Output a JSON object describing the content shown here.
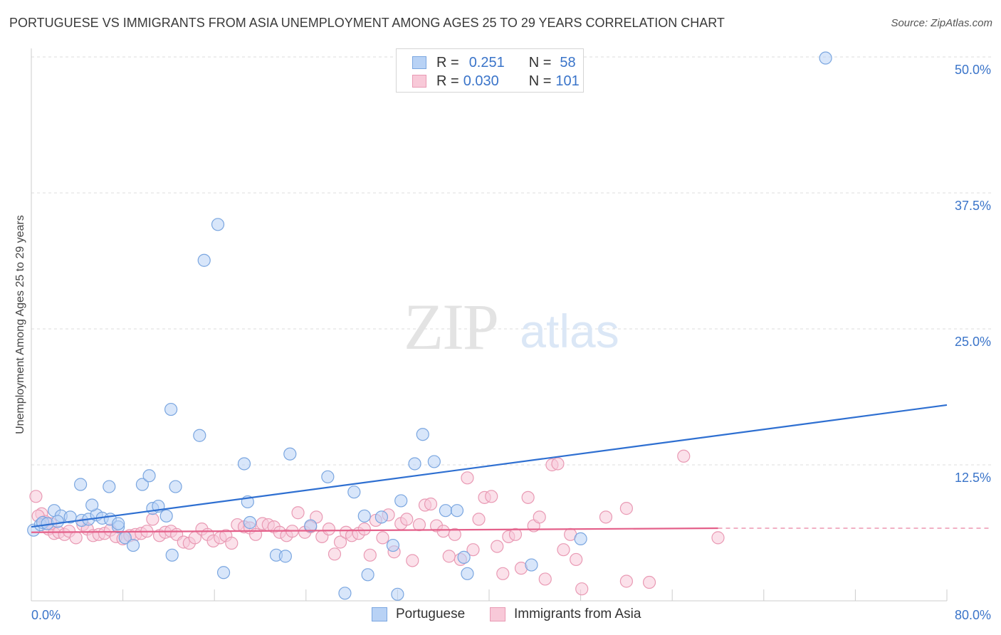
{
  "header": {
    "title": "PORTUGUESE VS IMMIGRANTS FROM ASIA UNEMPLOYMENT AMONG AGES 25 TO 29 YEARS CORRELATION CHART",
    "source": "Source: ZipAtlas.com"
  },
  "watermark": {
    "zip": "ZIP",
    "atlas": "atlas"
  },
  "legend": {
    "r_label": "R =",
    "n_label": "N =",
    "series": [
      {
        "r": "0.251",
        "n": "58"
      },
      {
        "r": "0.030",
        "n": "101"
      }
    ]
  },
  "bottom_legend": [
    "Portuguese",
    "Immigrants from Asia"
  ],
  "colors": {
    "portuguese_fill": "#b8d2f5",
    "portuguese_stroke": "#7aa6e0",
    "portuguese_line": "#2e6fd1",
    "asia_fill": "#f8c9d8",
    "asia_stroke": "#e99ab4",
    "asia_line": "#e4608a",
    "axis_text": "#3a74c9",
    "grid": "#dddddd"
  },
  "chart_data": {
    "type": "scatter",
    "title": "PORTUGUESE VS IMMIGRANTS FROM ASIA UNEMPLOYMENT AMONG AGES 25 TO 29 YEARS CORRELATION CHART",
    "ylabel": "Unemployment Among Ages 25 to 29 years",
    "xlabel": "",
    "xlim": [
      0,
      80
    ],
    "ylim": [
      0,
      50
    ],
    "x_tick_labels": [
      "0.0%",
      "80.0%"
    ],
    "y_ticks": [
      12.5,
      25.0,
      37.5,
      50.0
    ],
    "y_tick_labels": [
      "12.5%",
      "25.0%",
      "37.5%",
      "50.0%"
    ],
    "grid": true,
    "legend_position": "top-center",
    "series": [
      {
        "name": "Portuguese",
        "r": 0.251,
        "n": 58,
        "trend": {
          "x": [
            0,
            80
          ],
          "y": [
            6.8,
            18.0
          ],
          "dashed_from": null
        },
        "points": [
          [
            0.2,
            6.5
          ],
          [
            0.8,
            7.0
          ],
          [
            1.0,
            7.2
          ],
          [
            1.4,
            7.1
          ],
          [
            2.0,
            8.3
          ],
          [
            2.6,
            7.8
          ],
          [
            3.4,
            7.7
          ],
          [
            4.4,
            7.4
          ],
          [
            5.0,
            7.5
          ],
          [
            5.7,
            7.9
          ],
          [
            6.2,
            7.6
          ],
          [
            6.9,
            7.5
          ],
          [
            7.6,
            6.8
          ],
          [
            8.2,
            5.8
          ],
          [
            8.9,
            5.1
          ],
          [
            10.6,
            8.5
          ],
          [
            11.1,
            8.7
          ],
          [
            11.8,
            7.8
          ],
          [
            12.3,
            4.2
          ],
          [
            12.6,
            10.5
          ],
          [
            4.3,
            10.7
          ],
          [
            5.3,
            8.8
          ],
          [
            6.8,
            10.5
          ],
          [
            9.7,
            10.7
          ],
          [
            10.3,
            11.5
          ],
          [
            12.2,
            17.6
          ],
          [
            14.7,
            15.2
          ],
          [
            15.1,
            31.3
          ],
          [
            16.3,
            34.6
          ],
          [
            16.8,
            2.6
          ],
          [
            18.6,
            12.6
          ],
          [
            18.9,
            9.1
          ],
          [
            19.1,
            7.2
          ],
          [
            21.4,
            4.2
          ],
          [
            22.2,
            4.1
          ],
          [
            22.6,
            13.5
          ],
          [
            24.4,
            6.9
          ],
          [
            25.9,
            11.4
          ],
          [
            27.4,
            0.7
          ],
          [
            28.2,
            10.0
          ],
          [
            29.1,
            7.8
          ],
          [
            29.4,
            2.4
          ],
          [
            30.6,
            7.7
          ],
          [
            31.6,
            5.1
          ],
          [
            32.0,
            0.6
          ],
          [
            32.3,
            9.2
          ],
          [
            33.5,
            12.6
          ],
          [
            34.2,
            15.3
          ],
          [
            35.2,
            12.8
          ],
          [
            36.2,
            8.3
          ],
          [
            37.2,
            8.3
          ],
          [
            37.8,
            4.0
          ],
          [
            38.1,
            2.5
          ],
          [
            43.7,
            3.3
          ],
          [
            48.0,
            5.7
          ],
          [
            69.4,
            49.9
          ],
          [
            7.6,
            7.1
          ],
          [
            2.3,
            7.3
          ]
        ]
      },
      {
        "name": "Immigrants from Asia",
        "r": 0.03,
        "n": 101,
        "trend": {
          "x": [
            0,
            80
          ],
          "y": [
            6.3,
            6.8
          ],
          "dashed_from": 60
        },
        "points": [
          [
            0.4,
            9.6
          ],
          [
            0.9,
            8.0
          ],
          [
            1.2,
            7.3
          ],
          [
            1.5,
            6.6
          ],
          [
            2.0,
            6.2
          ],
          [
            2.4,
            6.3
          ],
          [
            2.9,
            6.1
          ],
          [
            3.3,
            6.4
          ],
          [
            3.9,
            5.8
          ],
          [
            4.5,
            7.0
          ],
          [
            4.9,
            6.6
          ],
          [
            5.4,
            6.0
          ],
          [
            5.9,
            6.1
          ],
          [
            6.4,
            6.2
          ],
          [
            6.9,
            6.5
          ],
          [
            7.4,
            5.9
          ],
          [
            8.0,
            5.7
          ],
          [
            8.6,
            6.0
          ],
          [
            9.1,
            6.1
          ],
          [
            9.6,
            6.2
          ],
          [
            10.1,
            6.4
          ],
          [
            10.6,
            7.5
          ],
          [
            11.2,
            6.0
          ],
          [
            11.7,
            6.3
          ],
          [
            12.2,
            6.4
          ],
          [
            12.7,
            6.1
          ],
          [
            13.3,
            5.4
          ],
          [
            13.8,
            5.3
          ],
          [
            14.3,
            5.8
          ],
          [
            14.9,
            6.6
          ],
          [
            15.4,
            6.1
          ],
          [
            15.9,
            5.5
          ],
          [
            16.5,
            5.8
          ],
          [
            17.0,
            6.0
          ],
          [
            17.5,
            5.3
          ],
          [
            18.0,
            7.0
          ],
          [
            18.6,
            6.8
          ],
          [
            19.1,
            6.7
          ],
          [
            19.6,
            6.1
          ],
          [
            20.2,
            7.1
          ],
          [
            20.7,
            7.0
          ],
          [
            21.2,
            6.8
          ],
          [
            21.7,
            6.3
          ],
          [
            22.3,
            6.0
          ],
          [
            22.8,
            6.4
          ],
          [
            23.3,
            8.1
          ],
          [
            23.9,
            6.3
          ],
          [
            24.4,
            6.8
          ],
          [
            24.9,
            7.7
          ],
          [
            25.4,
            5.9
          ],
          [
            26.0,
            6.6
          ],
          [
            26.5,
            4.3
          ],
          [
            27.0,
            5.4
          ],
          [
            27.5,
            6.3
          ],
          [
            28.0,
            6.0
          ],
          [
            28.6,
            6.2
          ],
          [
            29.1,
            6.6
          ],
          [
            29.6,
            4.2
          ],
          [
            30.1,
            7.4
          ],
          [
            30.7,
            5.8
          ],
          [
            31.2,
            7.9
          ],
          [
            31.7,
            4.5
          ],
          [
            32.3,
            7.1
          ],
          [
            32.8,
            7.5
          ],
          [
            33.3,
            3.7
          ],
          [
            33.9,
            7.0
          ],
          [
            34.4,
            8.8
          ],
          [
            34.9,
            8.9
          ],
          [
            35.4,
            6.9
          ],
          [
            36.0,
            6.4
          ],
          [
            36.5,
            4.1
          ],
          [
            37.0,
            6.1
          ],
          [
            37.5,
            3.8
          ],
          [
            38.1,
            11.3
          ],
          [
            38.6,
            4.7
          ],
          [
            39.1,
            7.5
          ],
          [
            39.6,
            9.5
          ],
          [
            40.2,
            9.6
          ],
          [
            40.7,
            5.0
          ],
          [
            41.2,
            2.5
          ],
          [
            41.7,
            5.9
          ],
          [
            42.3,
            6.1
          ],
          [
            42.8,
            3.0
          ],
          [
            43.4,
            9.5
          ],
          [
            43.9,
            6.9
          ],
          [
            44.4,
            7.7
          ],
          [
            44.9,
            2.0
          ],
          [
            45.5,
            12.5
          ],
          [
            46.0,
            12.6
          ],
          [
            46.5,
            4.7
          ],
          [
            47.1,
            6.1
          ],
          [
            47.6,
            3.8
          ],
          [
            48.1,
            1.1
          ],
          [
            50.2,
            7.7
          ],
          [
            52.0,
            8.5
          ],
          [
            52.0,
            1.8
          ],
          [
            54.0,
            1.7
          ],
          [
            57.0,
            13.3
          ],
          [
            60.0,
            5.8
          ],
          [
            0.6,
            7.8
          ],
          [
            1.7,
            7.1
          ]
        ]
      }
    ]
  }
}
